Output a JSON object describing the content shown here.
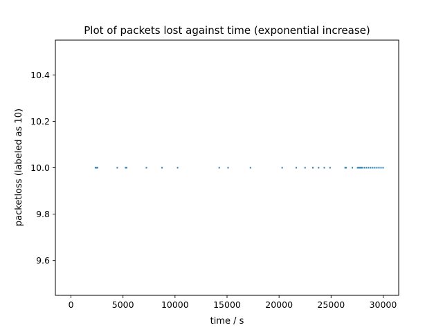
{
  "chart_data": {
    "type": "scatter",
    "title": "Plot of packets lost against time (exponential increase)",
    "xlabel": "time / s",
    "ylabel": "packetloss (labeled as 10)",
    "xlim": [
      -1500,
      31500
    ],
    "ylim": [
      9.45,
      10.55
    ],
    "xticks": [
      0,
      5000,
      10000,
      15000,
      20000,
      25000,
      30000
    ],
    "xtick_labels": [
      "0",
      "5000",
      "10000",
      "15000",
      "20000",
      "25000",
      "30000"
    ],
    "yticks": [
      9.6,
      9.8,
      10.0,
      10.2,
      10.4
    ],
    "ytick_labels": [
      "9.6",
      "9.8",
      "10.0",
      "10.2",
      "10.4"
    ],
    "grid": false,
    "legend": "none",
    "color": "#1f77b4",
    "series": [
      {
        "values_x": [
          2350,
          2400,
          2450,
          2500,
          2550,
          4450,
          5250,
          5350,
          7250,
          8750,
          10250,
          14250,
          15100,
          17250,
          20300,
          21650,
          22500,
          23250,
          23800,
          24350,
          24900,
          26350,
          26450,
          27050,
          27550,
          27600,
          27650,
          27700,
          27750,
          27800,
          27850,
          27900,
          27950,
          28000,
          28200,
          28400,
          28600,
          28800,
          29000,
          29200,
          29400,
          29600,
          29800,
          30000
        ],
        "values_y": [
          10,
          10,
          10,
          10,
          10,
          10,
          10,
          10,
          10,
          10,
          10,
          10,
          10,
          10,
          10,
          10,
          10,
          10,
          10,
          10,
          10,
          10,
          10,
          10,
          10,
          10,
          10,
          10,
          10,
          10,
          10,
          10,
          10,
          10,
          10,
          10,
          10,
          10,
          10,
          10,
          10,
          10,
          10,
          10
        ]
      }
    ]
  }
}
